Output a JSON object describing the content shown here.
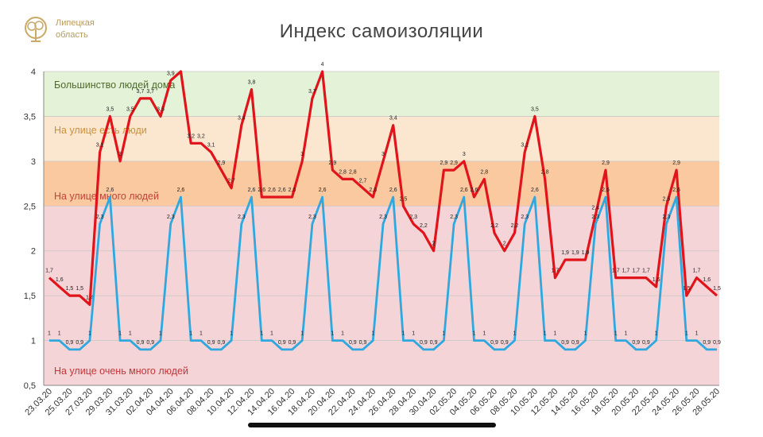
{
  "header": {
    "logo_line1": "Липецкая",
    "logo_line2": "область",
    "title": "Индекс самоизоляции"
  },
  "colors": {
    "red_series": "#e0141a",
    "blue_series": "#2fa8e0",
    "zone_green": "#e4f2d8",
    "zone_beige": "#fbe6d0",
    "zone_orange": "#fac9a0",
    "zone_pink": "#f4d4d6"
  },
  "chart_data": {
    "type": "line",
    "title": "Индекс самоизоляции",
    "ylim": [
      0.5,
      4
    ],
    "yticks": [
      "0,5",
      "1",
      "1,5",
      "2",
      "2,5",
      "3",
      "3,5",
      "4"
    ],
    "grid": true,
    "zones": [
      {
        "label": "Большинство людей дома",
        "from": 3.5,
        "to": 4,
        "color": "#e4f2d8"
      },
      {
        "label": "На улице есть люди",
        "from": 3,
        "to": 3.5,
        "color": "#fbe6d0"
      },
      {
        "label": "На улице много людей",
        "from": 2.5,
        "to": 3,
        "color": "#fac9a0"
      },
      {
        "label": "На улице очень много людей",
        "from": 0.5,
        "to": 2.5,
        "color": "#f4d4d6"
      }
    ],
    "x_tick_labels": [
      "23.03.20",
      "25.03.20",
      "27.03.20",
      "29.03.20",
      "31.03.20",
      "02.04.20",
      "04.04.20",
      "06.04.20",
      "08.04.20",
      "10.04.20",
      "12.04.20",
      "14.04.20",
      "16.04.20",
      "18.04.20",
      "20.04.20",
      "22.04.20",
      "24.04.20",
      "26.04.20",
      "28.04.20",
      "30.04.20",
      "02.05.20",
      "04.05.20",
      "06.05.20",
      "08.05.20",
      "10.05.20",
      "12.05.20",
      "14.05.20",
      "16.05.20",
      "18.05.20",
      "20.05.20",
      "22.05.20",
      "24.05.20",
      "26.05.20",
      "28.05.20"
    ],
    "series": [
      {
        "color": "#e0141a",
        "values": [
          1.7,
          1.6,
          1.5,
          1.5,
          1.4,
          3.1,
          3.5,
          3,
          3.5,
          3.7,
          3.7,
          3.5,
          3.9,
          4.0,
          3.2,
          3.2,
          3.1,
          2.9,
          2.7,
          3.4,
          3.8,
          2.6,
          2.6,
          2.6,
          2.6,
          3,
          3.7,
          4,
          2.9,
          2.8,
          2.8,
          2.7,
          2.6,
          3,
          3.4,
          2.5,
          2.3,
          2.2,
          2,
          2.9,
          2.9,
          3,
          2.6,
          2.8,
          2.2,
          2,
          2.2,
          3.1,
          3.5,
          2.8,
          1.7,
          1.9,
          1.9,
          1.9,
          2.4,
          2.9,
          1.7,
          1.7,
          1.7,
          1.7,
          1.6,
          2.5,
          2.9,
          1.5,
          1.7,
          1.6,
          1.5
        ],
        "labels": [
          "1,7",
          "1,6",
          "1,5",
          "1,5",
          "1,4",
          "3,1",
          "3,5",
          "3",
          "3,5",
          "3,7",
          "3,7",
          "3,5",
          "3,9",
          "",
          "3,2",
          "3,2",
          "3,1",
          "2,9",
          "2,7",
          "3,4",
          "3,8",
          "2,6",
          "2,6",
          "2,6",
          "2,6",
          "3",
          "3,7",
          "4",
          "2,9",
          "2,8",
          "2,8",
          "2,7",
          "2,6",
          "3",
          "3,4",
          "2,5",
          "2,3",
          "2,2",
          "2",
          "2,9",
          "2,9",
          "3",
          "2,6",
          "2,8",
          "2,2",
          "2",
          "2,2",
          "3,1",
          "3,5",
          "2,8",
          "1,7",
          "1,9",
          "1,9",
          "1,9",
          "2,4",
          "2,9",
          "1,7",
          "1,7",
          "1,7",
          "1,7",
          "1,6",
          "2,5",
          "2,9",
          "1,5",
          "1,7",
          "1,6",
          "1,5"
        ]
      },
      {
        "color": "#2fa8e0",
        "values": [
          1,
          1,
          0.9,
          0.9,
          1,
          2.3,
          2.6,
          1,
          1,
          0.9,
          0.9,
          1,
          2.3,
          2.6,
          1,
          1,
          0.9,
          0.9,
          1,
          2.3,
          2.6,
          1,
          1,
          0.9,
          0.9,
          1,
          2.3,
          2.6,
          1,
          1,
          0.9,
          0.9,
          1,
          2.3,
          2.6,
          1,
          1,
          0.9,
          0.9,
          1,
          2.3,
          2.6,
          1,
          1,
          0.9,
          0.9,
          1,
          2.3,
          2.6,
          1,
          1,
          0.9,
          0.9,
          1,
          2.3,
          2.6,
          1,
          1,
          0.9,
          0.9,
          1,
          2.3,
          2.6,
          1,
          1,
          0.9,
          0.9
        ],
        "labels": [
          "1",
          "1",
          "0,9",
          "0,9",
          "1",
          "2,3",
          "2,6",
          "1",
          "1",
          "0,9",
          "0,9",
          "1",
          "2,3",
          "2,6",
          "1",
          "1",
          "0,9",
          "0,9",
          "1",
          "2,3",
          "2,6",
          "1",
          "1",
          "0,9",
          "0,9",
          "1",
          "2,3",
          "2,6",
          "1",
          "1",
          "0,9",
          "0,9",
          "1",
          "2,3",
          "2,6",
          "1",
          "1",
          "0,9",
          "0,9",
          "1",
          "2,3",
          "2,6",
          "1",
          "1",
          "0,9",
          "0,9",
          "1",
          "2,3",
          "2,6",
          "1",
          "1",
          "0,9",
          "0,9",
          "1",
          "2,3",
          "2,6",
          "1",
          "1",
          "0,9",
          "0,9",
          "1",
          "2,3",
          "2,6",
          "1",
          "1",
          "0,9",
          "0,9"
        ]
      }
    ]
  }
}
